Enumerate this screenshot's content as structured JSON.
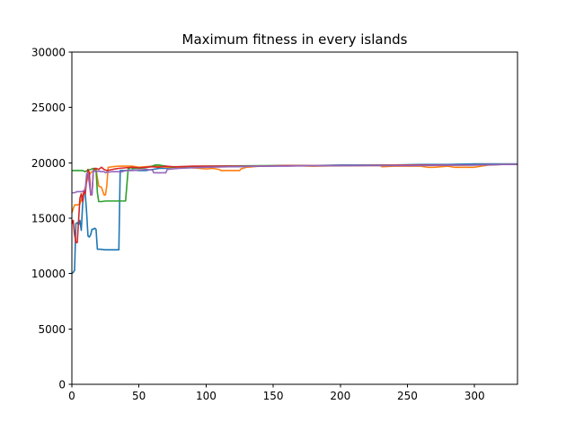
{
  "chart_data": {
    "type": "line",
    "title": "Maximum fitness in every islands",
    "xlabel": "",
    "ylabel": "",
    "xlim": [
      0,
      332
    ],
    "ylim": [
      0,
      30000
    ],
    "xticks": [
      0,
      50,
      100,
      150,
      200,
      250,
      300
    ],
    "yticks": [
      0,
      5000,
      10000,
      15000,
      20000,
      25000,
      30000
    ],
    "xtick_labels": [
      "0",
      "50",
      "100",
      "150",
      "200",
      "250",
      "300"
    ],
    "ytick_labels": [
      "0",
      "5000",
      "10000",
      "15000",
      "20000",
      "25000",
      "30000"
    ],
    "grid": false,
    "legend": "none",
    "series": [
      {
        "color": "#1f77b4",
        "x": [
          0,
          1,
          2,
          3,
          4,
          5,
          6,
          7,
          8,
          9,
          10,
          11,
          12,
          13,
          14,
          15,
          16,
          17,
          18,
          19,
          20,
          21,
          25,
          30,
          35,
          36,
          37,
          40,
          45,
          50,
          55,
          60,
          65,
          70,
          75,
          80,
          90,
          100,
          120,
          140,
          160,
          180,
          200,
          220,
          240,
          260,
          280,
          300,
          320,
          332
        ],
        "y": [
          10000,
          10100,
          10300,
          14500,
          14600,
          14400,
          14800,
          13900,
          16200,
          17400,
          17200,
          15500,
          13400,
          13300,
          13500,
          14000,
          14000,
          14100,
          14000,
          12200,
          12200,
          12200,
          12150,
          12150,
          12150,
          19300,
          19300,
          19300,
          19350,
          19300,
          19300,
          19400,
          19500,
          19500,
          19600,
          19600,
          19600,
          19650,
          19650,
          19700,
          19750,
          19750,
          19800,
          19800,
          19800,
          19850,
          19850,
          19900,
          19900,
          19900
        ]
      },
      {
        "color": "#ff7f0e",
        "x": [
          0,
          2,
          4,
          6,
          8,
          10,
          12,
          14,
          16,
          18,
          20,
          22,
          24,
          25,
          26,
          27,
          28,
          30,
          35,
          40,
          45,
          50,
          55,
          60,
          65,
          70,
          75,
          80,
          85,
          95,
          100,
          101,
          105,
          110,
          111,
          115,
          125,
          126,
          130,
          140,
          160,
          180,
          200,
          230,
          231,
          240,
          260,
          265,
          270,
          280,
          285,
          300,
          310,
          320,
          332
        ],
        "y": [
          15500,
          16200,
          16200,
          16300,
          17000,
          17800,
          18700,
          19100,
          19300,
          19400,
          17900,
          17800,
          17100,
          17100,
          17900,
          19600,
          19600,
          19650,
          19700,
          19700,
          19700,
          19600,
          19650,
          19700,
          19700,
          19600,
          19600,
          19550,
          19600,
          19500,
          19450,
          19450,
          19500,
          19400,
          19300,
          19300,
          19300,
          19450,
          19600,
          19700,
          19750,
          19700,
          19750,
          19750,
          19650,
          19700,
          19700,
          19600,
          19600,
          19700,
          19600,
          19600,
          19800,
          19850,
          19850
        ]
      },
      {
        "color": "#2ca02c",
        "x": [
          0,
          5,
          8,
          10,
          12,
          14,
          16,
          18,
          19,
          20,
          22,
          25,
          30,
          35,
          40,
          42,
          43,
          44,
          45,
          48,
          50,
          55,
          60,
          62,
          65,
          70,
          75,
          80,
          100,
          150,
          200,
          250,
          300,
          320,
          332
        ],
        "y": [
          19300,
          19300,
          19300,
          19200,
          19350,
          19400,
          19500,
          19400,
          17300,
          16500,
          16500,
          16550,
          16550,
          16550,
          16550,
          19500,
          19500,
          19600,
          19500,
          19500,
          19500,
          19550,
          19700,
          19800,
          19800,
          19700,
          19600,
          19650,
          19700,
          19750,
          19750,
          19800,
          19800,
          19850,
          19850
        ]
      },
      {
        "color": "#d62728",
        "x": [
          0,
          1,
          2,
          3,
          4,
          5,
          6,
          7,
          8,
          9,
          10,
          11,
          12,
          13,
          14,
          15,
          16,
          17,
          18,
          20,
          22,
          24,
          26,
          28,
          30,
          35,
          40,
          45,
          50,
          55,
          60,
          65,
          70,
          75,
          80,
          90,
          100,
          120,
          140,
          160,
          180,
          200,
          250,
          300,
          320,
          332
        ],
        "y": [
          14500,
          14800,
          13500,
          12800,
          12800,
          14800,
          16800,
          17200,
          16500,
          17500,
          17200,
          18500,
          19400,
          19100,
          17100,
          17200,
          19300,
          19500,
          19500,
          19400,
          19600,
          19400,
          19300,
          19350,
          19400,
          19500,
          19550,
          19600,
          19550,
          19600,
          19650,
          19600,
          19700,
          19650,
          19650,
          19700,
          19700,
          19700,
          19700,
          19750,
          19750,
          19750,
          19800,
          19800,
          19850,
          19850
        ]
      },
      {
        "color": "#9467bd",
        "x": [
          0,
          2,
          4,
          6,
          8,
          10,
          11,
          12,
          14,
          15,
          16,
          18,
          20,
          22,
          24,
          25,
          26,
          30,
          35,
          36,
          40,
          45,
          50,
          55,
          60,
          61,
          65,
          70,
          71,
          75,
          80,
          90,
          100,
          120,
          140,
          160,
          180,
          200,
          250,
          300,
          320,
          332
        ],
        "y": [
          17300,
          17300,
          17400,
          17400,
          17400,
          17600,
          19000,
          19100,
          17200,
          17100,
          19300,
          19200,
          19250,
          19200,
          19200,
          19100,
          19150,
          19200,
          19200,
          19150,
          19300,
          19300,
          19350,
          19400,
          19350,
          19100,
          19100,
          19100,
          19400,
          19450,
          19500,
          19550,
          19600,
          19650,
          19700,
          19700,
          19750,
          19750,
          19750,
          19800,
          19850,
          19850
        ]
      }
    ]
  }
}
